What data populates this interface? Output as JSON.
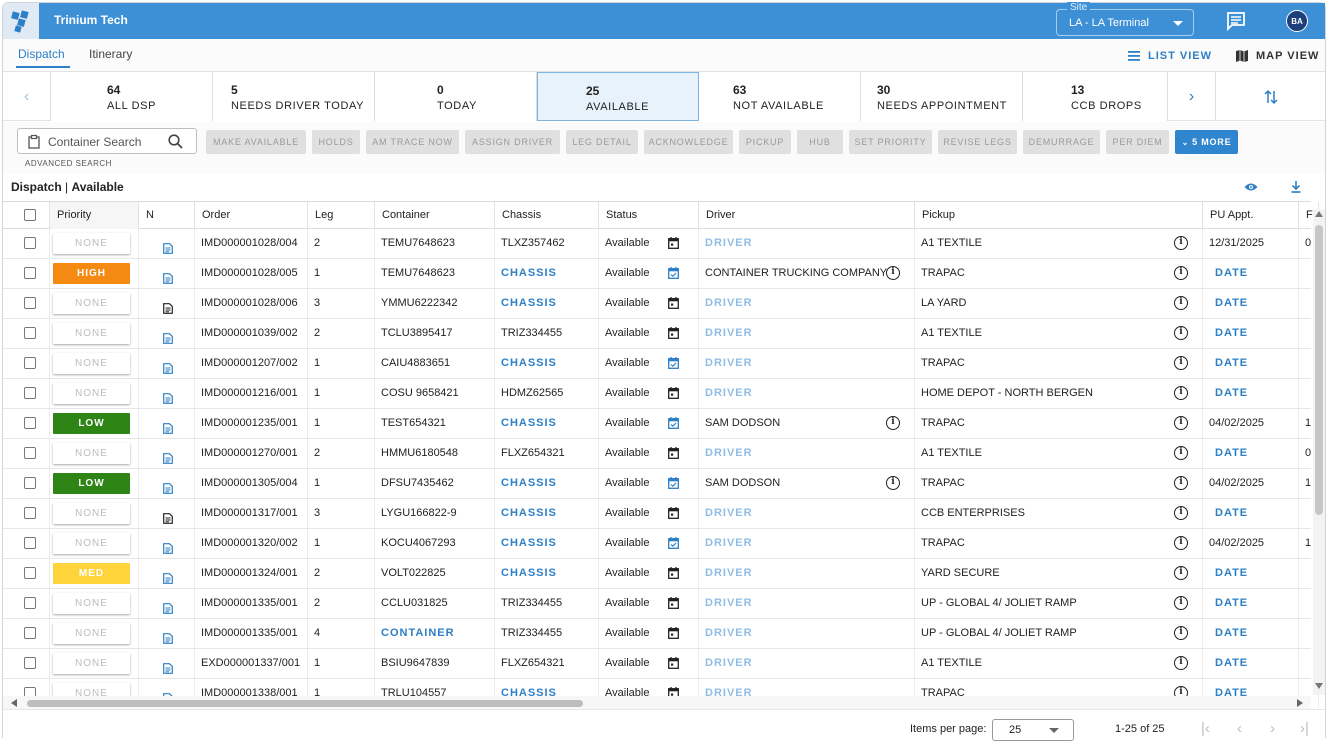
{
  "app": {
    "title": "Trinium Tech"
  },
  "site": {
    "legend": "Site",
    "value": "LA - LA Terminal"
  },
  "user": {
    "initials": "BA"
  },
  "tabs": [
    {
      "label": "Dispatch",
      "active": true
    },
    {
      "label": "Itinerary",
      "active": false
    }
  ],
  "views": {
    "list": "LIST VIEW",
    "map": "MAP VIEW"
  },
  "kpis": [
    {
      "count": "64",
      "label": "ALL DSP"
    },
    {
      "count": "5",
      "label": "NEEDS DRIVER TODAY"
    },
    {
      "count": "0",
      "label": "TODAY"
    },
    {
      "count": "25",
      "label": "AVAILABLE",
      "active": true
    },
    {
      "count": "63",
      "label": "NOT AVAILABLE"
    },
    {
      "count": "30",
      "label": "NEEDS APPOINTMENT"
    },
    {
      "count": "13",
      "label": "CCB DROPS"
    }
  ],
  "search": {
    "placeholder": "Container Search",
    "advanced": "ADVANCED SEARCH"
  },
  "actions": [
    "MAKE AVAILABLE",
    "HOLDS",
    "AM TRACE NOW",
    "ASSIGN DRIVER",
    "LEG DETAIL",
    "ACKNOWLEDGE",
    "PICKUP",
    "HUB",
    "SET PRIORITY",
    "REVISE LEGS",
    "DEMURRAGE",
    "PER DIEM"
  ],
  "more_label": "5 MORE",
  "section": {
    "main": "Dispatch",
    "sep": " | ",
    "sub": "Available"
  },
  "columns": [
    "Priority",
    "N",
    "Order",
    "Leg",
    "Container",
    "Chassis",
    "Status",
    "Driver",
    "Pickup",
    "PU Appt.",
    "F"
  ],
  "rows": [
    {
      "priority": "NONE",
      "doc": "blue",
      "order": "IMD000001028/004",
      "leg": "2",
      "container": "TEMU7648623",
      "chassis": "TLXZ357462",
      "status": "Available",
      "cal": "dark",
      "driver": "DRIVER",
      "pickup": "A1 TEXTILE",
      "pu_appt": "12/31/2025",
      "extra": "0"
    },
    {
      "priority": "HIGH",
      "doc": "blue",
      "order": "IMD000001028/005",
      "leg": "1",
      "container": "TEMU7648623",
      "chassis": "CHASSIS",
      "status": "Available",
      "cal": "blue",
      "driver": "CONTAINER TRUCKING COMPANY",
      "pickup": "TRAPAC",
      "pu_appt": "DATE",
      "extra": ""
    },
    {
      "priority": "NONE",
      "doc": "dark",
      "order": "IMD000001028/006",
      "leg": "3",
      "container": "YMMU6222342",
      "chassis": "CHASSIS",
      "status": "Available",
      "cal": "dark",
      "driver": "DRIVER",
      "pickup": "LA YARD",
      "pu_appt": "DATE",
      "extra": ""
    },
    {
      "priority": "NONE",
      "doc": "blue",
      "order": "IMD000001039/002",
      "leg": "2",
      "container": "TCLU3895417",
      "chassis": "TRIZ334455",
      "status": "Available",
      "cal": "dark",
      "driver": "DRIVER",
      "pickup": "A1 TEXTILE",
      "pu_appt": "DATE",
      "extra": ""
    },
    {
      "priority": "NONE",
      "doc": "blue",
      "order": "IMD000001207/002",
      "leg": "1",
      "container": "CAIU4883651",
      "chassis": "CHASSIS",
      "status": "Available",
      "cal": "blue",
      "driver": "DRIVER",
      "pickup": "TRAPAC",
      "pu_appt": "DATE",
      "extra": ""
    },
    {
      "priority": "NONE",
      "doc": "blue",
      "order": "IMD000001216/001",
      "leg": "1",
      "container": "COSU 9658421",
      "chassis": "HDMZ62565",
      "status": "Available",
      "cal": "dark",
      "driver": "DRIVER",
      "pickup": "HOME DEPOT - NORTH BERGEN",
      "pu_appt": "DATE",
      "extra": ""
    },
    {
      "priority": "LOW",
      "doc": "blue",
      "order": "IMD000001235/001",
      "leg": "1",
      "container": "TEST654321",
      "chassis": "CHASSIS",
      "status": "Available",
      "cal": "blue",
      "driver": "SAM DODSON",
      "pickup": "TRAPAC",
      "pu_appt": "04/02/2025",
      "extra": "1"
    },
    {
      "priority": "NONE",
      "doc": "blue",
      "order": "IMD000001270/001",
      "leg": "2",
      "container": "HMMU6180548",
      "chassis": "FLXZ654321",
      "status": "Available",
      "cal": "dark",
      "driver": "DRIVER",
      "pickup": "A1 TEXTILE",
      "pu_appt": "DATE",
      "extra": "0"
    },
    {
      "priority": "LOW",
      "doc": "blue",
      "order": "IMD000001305/004",
      "leg": "1",
      "container": "DFSU7435462",
      "chassis": "CHASSIS",
      "status": "Available",
      "cal": "blue",
      "driver": "SAM DODSON",
      "pickup": "TRAPAC",
      "pu_appt": "04/02/2025",
      "extra": "1"
    },
    {
      "priority": "NONE",
      "doc": "dark",
      "order": "IMD000001317/001",
      "leg": "3",
      "container": "LYGU166822-9",
      "chassis": "CHASSIS",
      "status": "Available",
      "cal": "dark",
      "driver": "DRIVER",
      "pickup": "CCB ENTERPRISES",
      "pu_appt": "DATE",
      "extra": ""
    },
    {
      "priority": "NONE",
      "doc": "blue",
      "order": "IMD000001320/002",
      "leg": "1",
      "container": "KOCU4067293",
      "chassis": "CHASSIS",
      "status": "Available",
      "cal": "blue",
      "driver": "DRIVER",
      "pickup": "TRAPAC",
      "pu_appt": "04/02/2025",
      "extra": "1"
    },
    {
      "priority": "MED",
      "doc": "blue",
      "order": "IMD000001324/001",
      "leg": "2",
      "container": "VOLT022825",
      "chassis": "CHASSIS",
      "status": "Available",
      "cal": "dark",
      "driver": "DRIVER",
      "pickup": "YARD SECURE",
      "pu_appt": "DATE",
      "extra": ""
    },
    {
      "priority": "NONE",
      "doc": "blue",
      "order": "IMD000001335/001",
      "leg": "2",
      "container": "CCLU031825",
      "chassis": "TRIZ334455",
      "status": "Available",
      "cal": "dark",
      "driver": "DRIVER",
      "pickup": "UP - GLOBAL 4/ JOLIET RAMP",
      "pu_appt": "DATE",
      "extra": ""
    },
    {
      "priority": "NONE",
      "doc": "blue",
      "order": "IMD000001335/001",
      "leg": "4",
      "container": "CONTAINER",
      "chassis": "TRIZ334455",
      "status": "Available",
      "cal": "dark",
      "driver": "DRIVER",
      "pickup": "UP - GLOBAL 4/ JOLIET RAMP",
      "pu_appt": "DATE",
      "extra": ""
    },
    {
      "priority": "NONE",
      "doc": "blue",
      "order": "EXD000001337/001",
      "leg": "1",
      "container": "BSIU9647839",
      "chassis": "FLXZ654321",
      "status": "Available",
      "cal": "dark",
      "driver": "DRIVER",
      "pickup": "A1 TEXTILE",
      "pu_appt": "DATE",
      "extra": ""
    },
    {
      "priority": "NONE",
      "doc": "blue",
      "order": "IMD000001338/001",
      "leg": "1",
      "container": "TRLU104557",
      "chassis": "CHASSIS",
      "status": "Available",
      "cal": "dark",
      "driver": "DRIVER",
      "pickup": "TRAPAC",
      "pu_appt": "DATE",
      "extra": ""
    }
  ],
  "pagination": {
    "items_label": "Items per page:",
    "items_value": "25",
    "range": "1-25 of 25"
  },
  "colors": {
    "header": "#3d8fd6",
    "accent": "#2d7fc6",
    "high": "#f58a12",
    "low": "#2e8415",
    "med": "#ffd43b"
  }
}
